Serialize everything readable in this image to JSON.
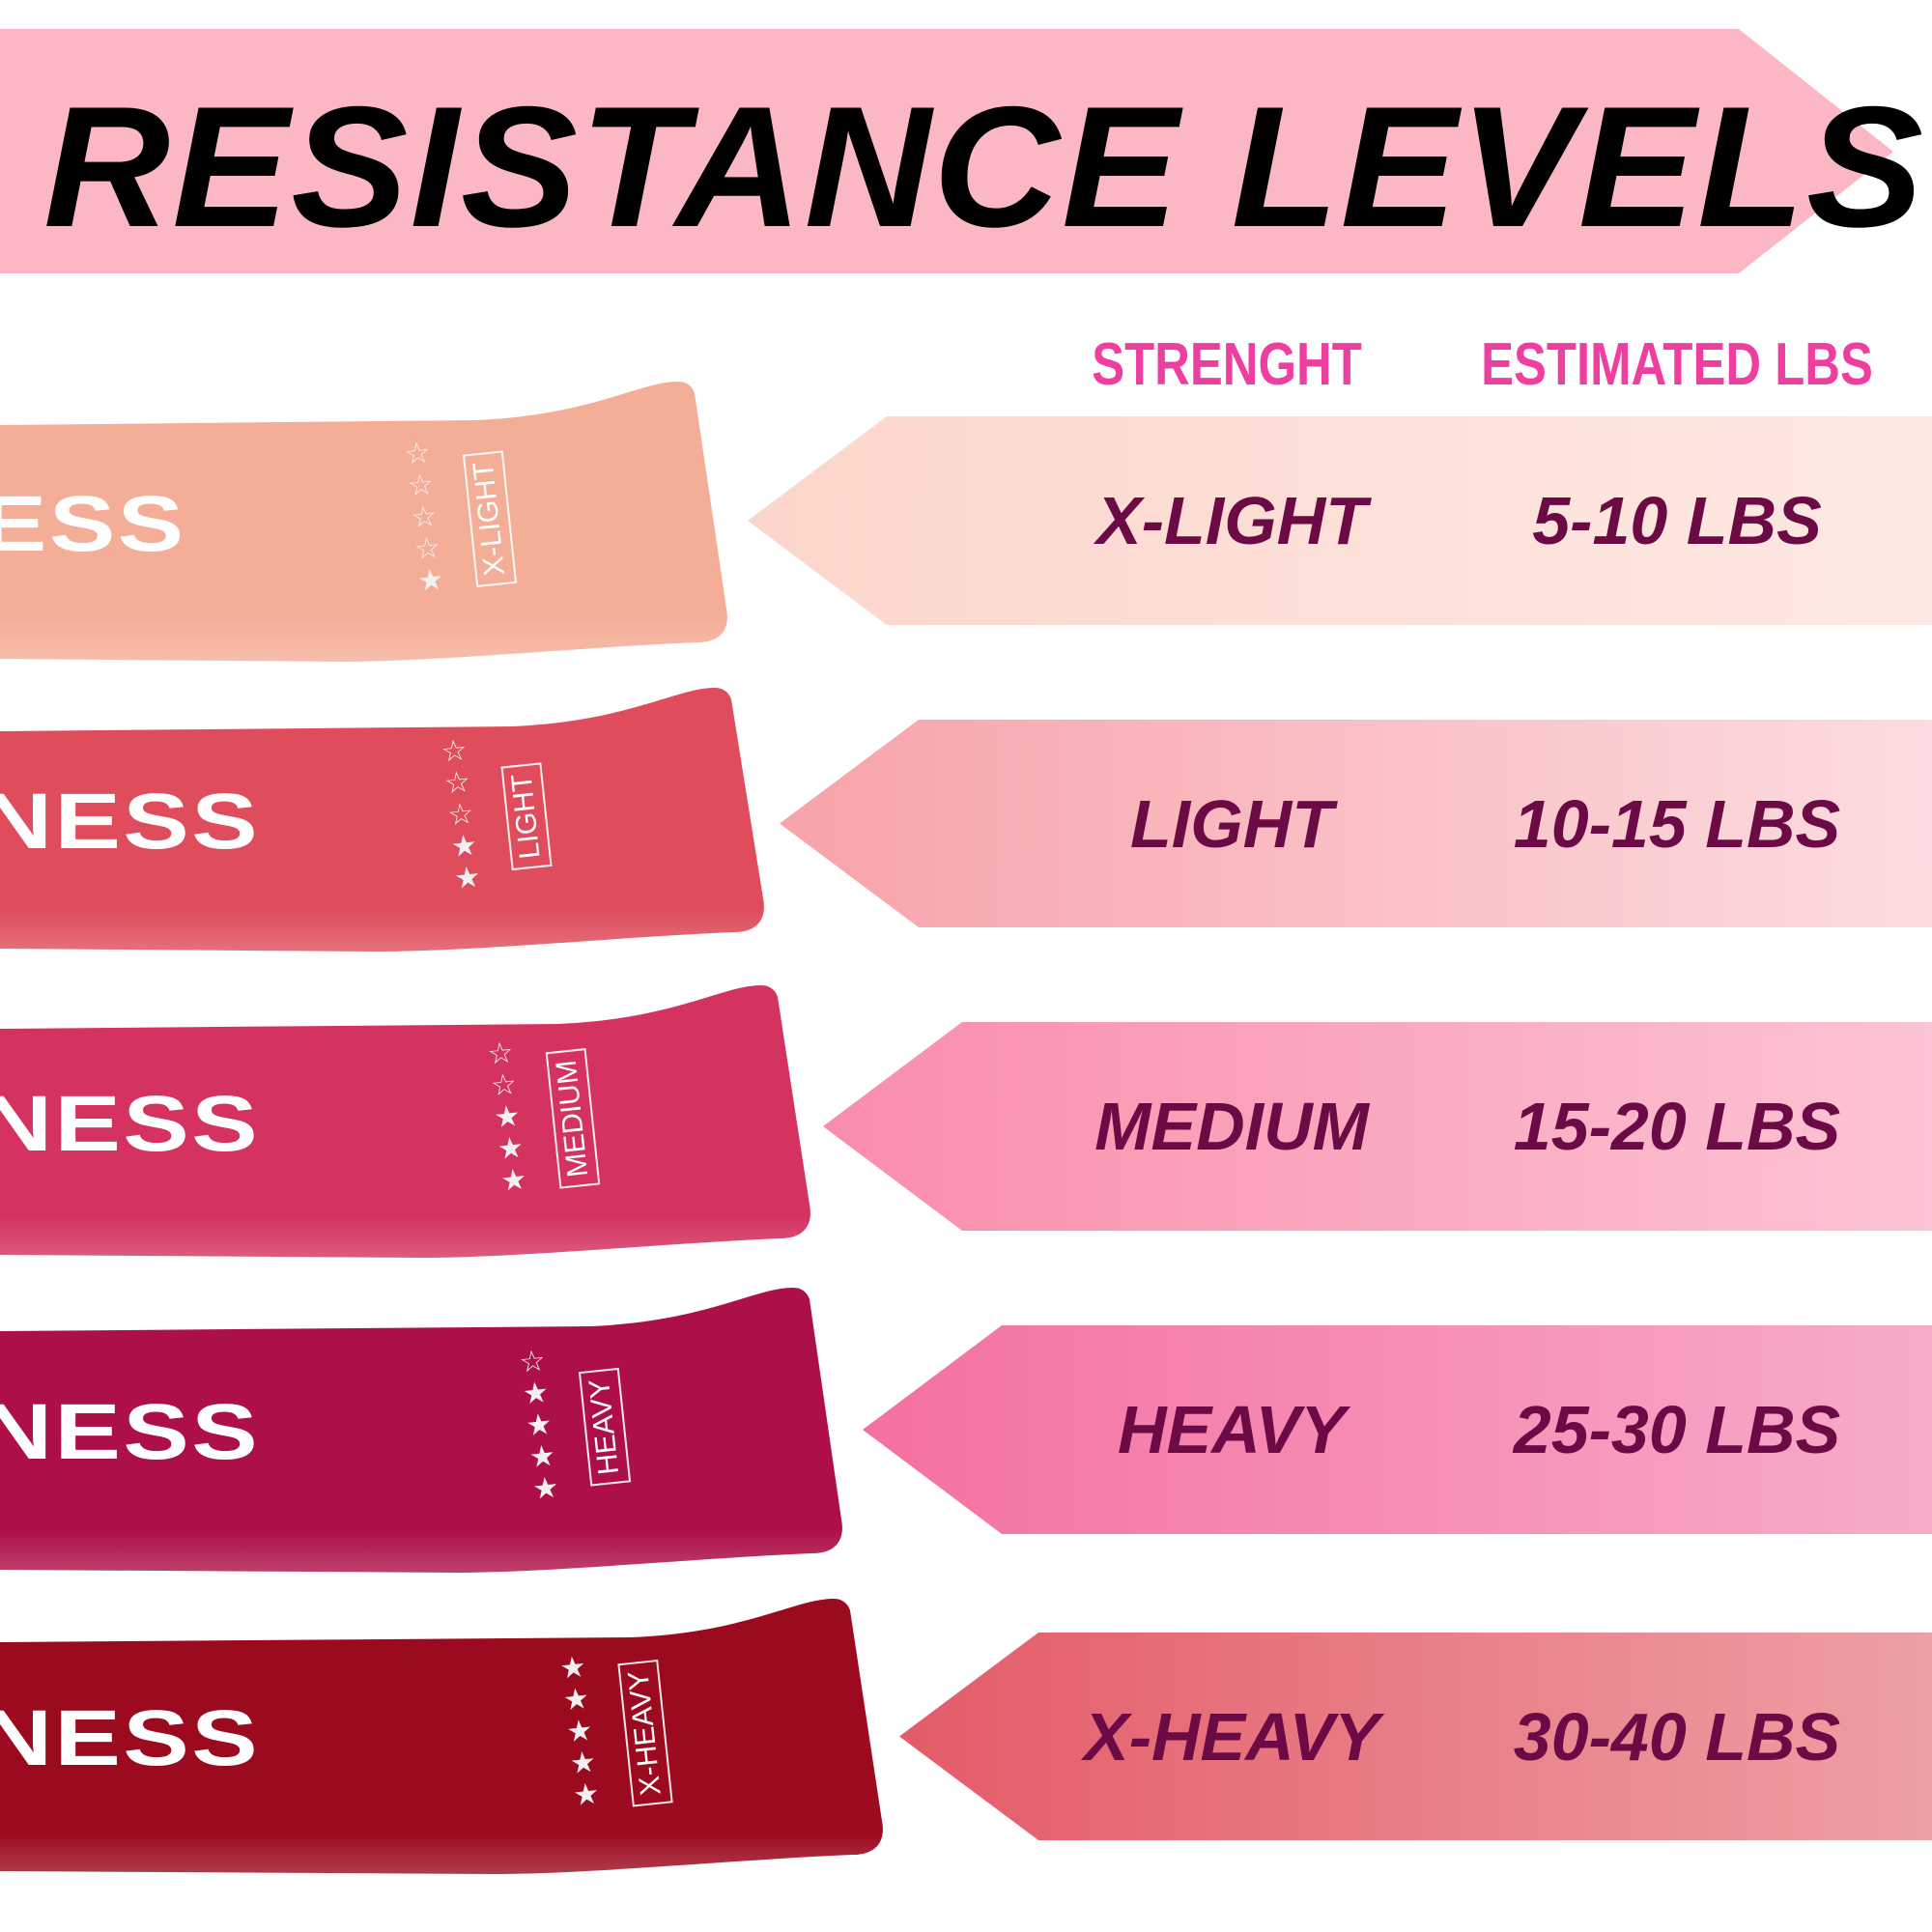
{
  "title": "RESISTANCE LEVELS",
  "headers": {
    "strength": "STRENGHT",
    "estimated": "ESTIMATED LBS"
  },
  "colors": {
    "title_banner": "#fbb8c4",
    "header_text": "#ee3fa0",
    "row_text": "#6b0a45"
  },
  "levels": [
    {
      "strength": "X-LIGHT",
      "lbs": "5-10 LBS",
      "band_label": "X-LIGHT",
      "band_word": "ESS",
      "stars_filled": 1,
      "stars_total": 5,
      "band_color": "#f4ae98",
      "banner_colors": [
        "#fcd6cb",
        "#fde9e3"
      ]
    },
    {
      "strength": "LIGHT",
      "lbs": "10-15 LBS",
      "band_label": "LIGHT",
      "band_word": "NESS",
      "stars_filled": 2,
      "stars_total": 5,
      "band_color": "#df4d5d",
      "banner_colors": [
        "#f7a3a9",
        "#fcdce0"
      ]
    },
    {
      "strength": "MEDIUM",
      "lbs": "15-20 LBS",
      "band_label": "MEDIUM",
      "band_word": "NESS",
      "stars_filled": 3,
      "stars_total": 5,
      "band_color": "#d4325f",
      "banner_colors": [
        "#f98dab",
        "#fcc4d4"
      ]
    },
    {
      "strength": "HEAVY",
      "lbs": "25-30 LBS",
      "band_label": "HEAVY",
      "band_word": "NESS",
      "stars_filled": 4,
      "stars_total": 5,
      "band_color": "#ad1048",
      "banner_colors": [
        "#f470a0",
        "#f7abca"
      ]
    },
    {
      "strength": "X-HEAVY",
      "lbs": "30-40 LBS",
      "band_label": "X-HEAVY",
      "band_word": "NESS",
      "stars_filled": 5,
      "stars_total": 5,
      "band_color": "#9c0a1f",
      "banner_colors": [
        "#e45b69",
        "#eda0a5"
      ]
    }
  ]
}
